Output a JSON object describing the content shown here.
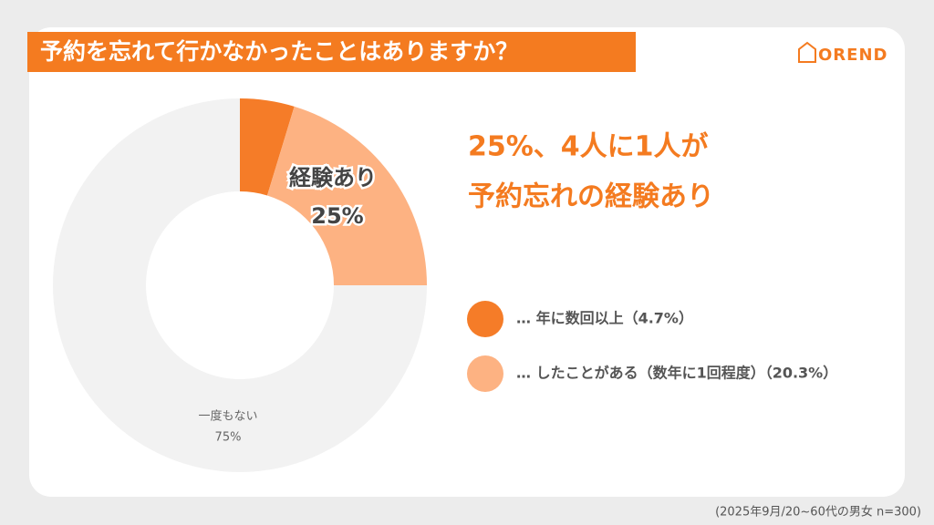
{
  "chart_data": {
    "type": "donut",
    "title": "予約を忘れて行かなかったことはありますか？",
    "logo": "OREND",
    "headline": [
      "25%、4人に1人が",
      "予約忘れの経験あり"
    ],
    "categories": [
      "… 年に数回以上（4.7%）",
      "… したことがある（数年に1回程度）（20.3%）",
      "一度もない"
    ],
    "values": [
      4.7,
      20.3,
      75
    ],
    "value_labels": [
      null,
      null,
      "75%"
    ],
    "colors": [
      "#f57c28",
      "#fdb282",
      "#f2f2f2"
    ],
    "legend": [
      0,
      1
    ],
    "group_annotation": {
      "text": "経験あり",
      "value_label": "25%"
    },
    "footnote": "(2025年9月/20~60代の男女  n=300)"
  }
}
